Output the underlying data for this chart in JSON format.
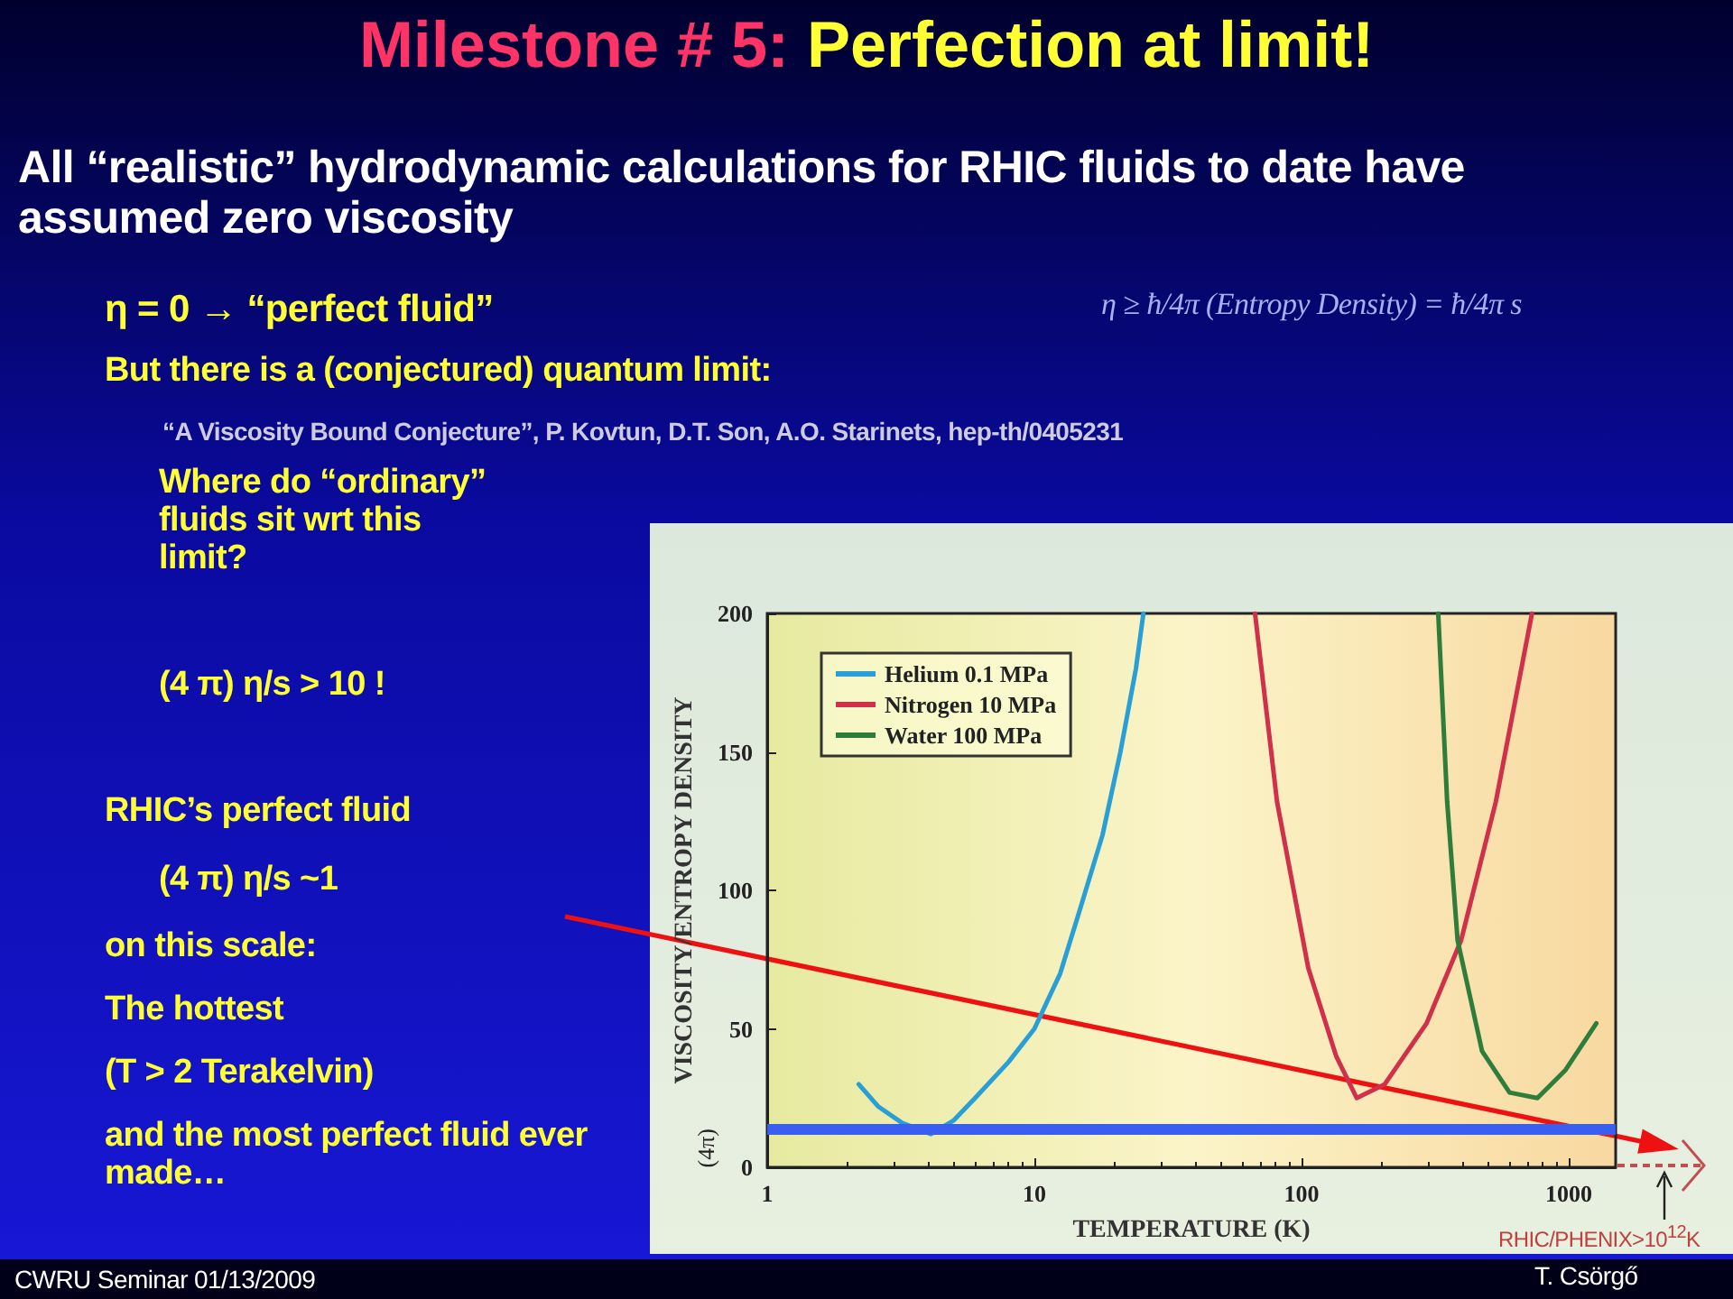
{
  "chart_data": {
    "type": "line",
    "title": "Milestone # 5: Perfection at limit!",
    "xlabel": "TEMPERATURE (K)",
    "ylabel": "VISCOSITY/ENTROPY DENSITY",
    "log": "x",
    "xlim": [
      1,
      1500
    ],
    "xticks": [
      1,
      10,
      100,
      1000
    ],
    "ylim": [
      0,
      200
    ],
    "yticks": [
      0,
      50,
      100,
      150,
      200
    ],
    "grid": false,
    "legend": "top left",
    "marker": "none",
    "line_style": "solid",
    "series": [
      {
        "name": "Helium 0.1 MPa",
        "color": "#2a9fd6",
        "x": [
          2.2,
          2.6,
          3.2,
          4.1,
          5,
          6,
          8,
          10,
          12.5,
          14.7,
          18,
          21,
          24,
          25.6
        ],
        "values": [
          30,
          22,
          16,
          12,
          17,
          25,
          38,
          50,
          70,
          92,
          120,
          150,
          180,
          200
        ]
      },
      {
        "name": "Nitrogen 10 MPa",
        "color": "#d0304a",
        "x": [
          67,
          81,
          106,
          135,
          161,
          205,
          294,
          396,
          534,
          729
        ],
        "values": [
          200,
          132,
          72,
          40,
          25,
          30,
          52,
          82,
          132,
          200
        ]
      },
      {
        "name": "Water 100 MPa",
        "color": "#2e7d3a",
        "x": [
          325,
          351,
          384,
          474,
          601,
          764,
          971,
          1270
        ],
        "values": [
          200,
          132,
          82,
          42,
          27,
          25,
          35,
          52
        ]
      }
    ],
    "ref_lines": [
      {
        "axis": "y",
        "value": 14,
        "label": "(4π)",
        "color": "#3a5ff0"
      }
    ],
    "annotations": [
      "All “realistic” hydrodynamic calculations for RHIC fluids to date have assumed zero viscosity",
      "η = 0  →   “perfect fluid”",
      "η ≥ ħ/4π (Entropy Density) = ħ/4π s",
      "But there is a (conjectured) quantum limit:",
      "“A Viscosity Bound Conjecture”, P. Kovtun, D.T. Son, A.O. Starinets, hep-th/0405231",
      "Where do “ordinary” fluids sit  wrt this limit?",
      "(4 π) η/s > 10 !",
      "RHIC’s perfect fluid",
      "(4 π) η/s  ~1",
      "on this scale:",
      "The hottest",
      "(T > 2 Terakelvin)",
      "and the most perfect fluid ever made…",
      "CWRU Seminar 01/13/2009",
      "T. Csörgő",
      "RHIC/PHENIX>10$^{12}$K"
    ]
  }
}
